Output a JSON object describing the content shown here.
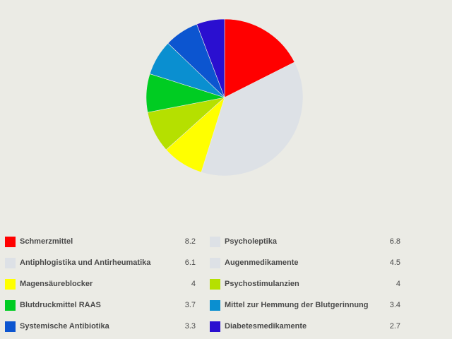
{
  "chart_data": {
    "type": "pie",
    "title": "",
    "categories": [
      "Schmerzmittel",
      "Psycholeptika",
      "Antiphlogistika und Antirheumatika",
      "Augenmedikamente",
      "Magensäureblocker",
      "Psychostimulanzien",
      "Blutdruckmittel RAAS",
      "Mittel zur Hemmung der Blutgerinnung",
      "Systemische Antibiotika",
      "Diabetesmedikamente"
    ],
    "values": [
      8.2,
      6.8,
      6.1,
      4.5,
      4,
      4,
      3.7,
      3.4,
      3.3,
      2.7
    ],
    "value_labels": [
      "8.2",
      "6.8",
      "6.1",
      "4.5",
      "4",
      "4",
      "3.7",
      "3.4",
      "3.3",
      "2.7"
    ],
    "colors": [
      "#ff0000",
      "#dde1e6",
      "#dde1e6",
      "#dde1e6",
      "#ffff00",
      "#b5e000",
      "#00cc22",
      "#0a8fd0",
      "#0c55d0",
      "#2a0fd0"
    ],
    "pie_order": [
      {
        "name": "Schmerzmittel",
        "value": 8.2,
        "color": "#ff0000"
      },
      {
        "name": "Psycholeptika + Antiphlogistika + Augenmedikamente",
        "value": 17.4,
        "color": "#dde1e6"
      },
      {
        "name": "Magensäureblocker",
        "value": 4,
        "color": "#ffff00"
      },
      {
        "name": "Psychostimulanzien",
        "value": 4,
        "color": "#b5e000"
      },
      {
        "name": "Blutdruckmittel RAAS",
        "value": 3.7,
        "color": "#00cc22"
      },
      {
        "name": "Mittel zur Hemmung der Blutgerinnung",
        "value": 3.4,
        "color": "#0a8fd0"
      },
      {
        "name": "Systemische Antibiotika",
        "value": 3.3,
        "color": "#0c55d0"
      },
      {
        "name": "Diabetesmedikamente",
        "value": 2.7,
        "color": "#2a0fd0"
      }
    ],
    "legend_placement": "bottom"
  },
  "legend": {
    "rows": [
      [
        {
          "label": "Schmerzmittel",
          "value": "8.2",
          "color": "#ff0000"
        },
        {
          "label": "Psycholeptika",
          "value": "6.8",
          "color": "#dde1e6"
        }
      ],
      [
        {
          "label": "Antiphlogistika und Antirheumatika",
          "value": "6.1",
          "color": "#dde1e6"
        },
        {
          "label": "Augenmedikamente",
          "value": "4.5",
          "color": "#dde1e6"
        }
      ],
      [
        {
          "label": "Magensäureblocker",
          "value": "4",
          "color": "#ffff00"
        },
        {
          "label": "Psychostimulanzien",
          "value": "4",
          "color": "#b5e000"
        }
      ],
      [
        {
          "label": "Blutdruckmittel RAAS",
          "value": "3.7",
          "color": "#00cc22"
        },
        {
          "label": "Mittel zur Hemmung der Blutgerinnung",
          "value": "3.4",
          "color": "#0a8fd0"
        }
      ],
      [
        {
          "label": "Systemische Antibiotika",
          "value": "3.3",
          "color": "#0c55d0"
        },
        {
          "label": "Diabetesmedikamente",
          "value": "2.7",
          "color": "#2a0fd0"
        }
      ]
    ]
  }
}
